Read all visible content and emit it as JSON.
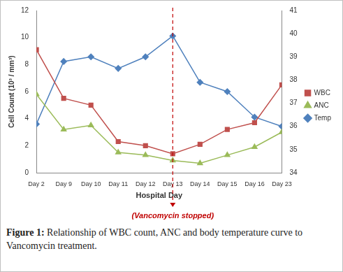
{
  "chart_data": {
    "type": "line",
    "x_label": "Hospital Day",
    "y_label": "Cell Count (10³ / mm³)",
    "categories": [
      "Day 2",
      "Day 9",
      "Day 10",
      "Day 11",
      "Day 12",
      "Day 13",
      "Day 14",
      "Day 15",
      "Day 16",
      "Day 23"
    ],
    "series": [
      {
        "name": "WBC",
        "color": "#c0504d",
        "marker": "square",
        "values": [
          9.1,
          5.5,
          5.0,
          2.3,
          2.0,
          1.4,
          2.1,
          3.2,
          3.7,
          6.5
        ]
      },
      {
        "name": "ANC",
        "color": "#9bbb59",
        "marker": "triangle",
        "values": [
          5.8,
          3.2,
          3.5,
          1.5,
          1.3,
          0.9,
          0.7,
          1.3,
          1.9,
          3.0
        ]
      },
      {
        "name": "Temp",
        "color": "#4f81bd",
        "marker": "diamond",
        "axis": "y2",
        "values": [
          36.1,
          38.8,
          39.0,
          38.5,
          39.0,
          39.9,
          37.9,
          37.5,
          36.4,
          36.0
        ]
      }
    ],
    "ylim": [
      0,
      12
    ],
    "yticks": [
      0,
      2,
      4,
      6,
      8,
      10,
      12
    ],
    "y2lim": [
      34,
      41
    ],
    "y2ticks": [
      34,
      35,
      36,
      37,
      38,
      39,
      40,
      41
    ],
    "grid": false,
    "legend": "right",
    "annotations": [
      {
        "x": "Day 13",
        "text": "(Vancomycin stopped)",
        "color": "#c00000",
        "line_style": "dashed"
      }
    ],
    "caption": {
      "label": "Figure 1:",
      "text": "Relationship of WBC count, ANC and body temperature curve to Vancomycin treatment."
    }
  }
}
